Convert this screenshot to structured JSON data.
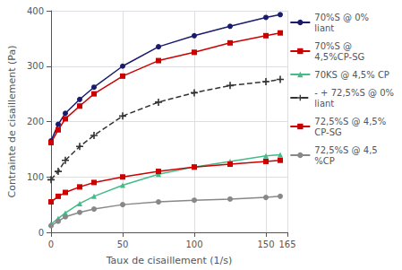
{
  "chart_data": {
    "type": "line",
    "xlabel": "Taux de cisaillement (1/s)",
    "ylabel": "Contrainte de cisaillement (Pa)",
    "xlim": [
      0,
      165
    ],
    "ylim": [
      0,
      400
    ],
    "xticks": [
      0,
      50,
      100,
      150
    ],
    "yticks": [
      0,
      100,
      200,
      300,
      400
    ],
    "grid": true,
    "legend": "right",
    "x": [
      0,
      5,
      10,
      20,
      30,
      50,
      75,
      100,
      125,
      150,
      160
    ],
    "series": [
      {
        "name": "70%S @ 0%\nliant",
        "color": "#1a1a6e",
        "marker": "circle",
        "line_style": "solid",
        "values": [
          165,
          195,
          215,
          240,
          262,
          300,
          335,
          355,
          372,
          388,
          393
        ]
      },
      {
        "name": "70%S @\n4,5%CP-SG",
        "color": "#CC0000",
        "marker": "square",
        "line_style": "solid",
        "values": [
          162,
          185,
          205,
          228,
          250,
          282,
          310,
          325,
          342,
          355,
          360
        ]
      },
      {
        "name": "70KS @ 4,5% CP",
        "color": "#44BB88",
        "marker": "triangle",
        "line_style": "solid",
        "values": [
          15,
          25,
          35,
          52,
          65,
          85,
          105,
          118,
          128,
          138,
          140
        ]
      },
      {
        "name": "- + 72,5%S @ 0%\nliant",
        "color": "#333333",
        "marker": "plus",
        "line_style": "dashed",
        "values": [
          95,
          110,
          130,
          155,
          175,
          210,
          235,
          252,
          265,
          272,
          276
        ]
      },
      {
        "name": "72,5%S @ 4,5%\nCP-SG",
        "color": "#CC0000",
        "marker": "square",
        "line_style": "solid",
        "values": [
          55,
          65,
          72,
          82,
          90,
          100,
          110,
          118,
          123,
          128,
          130
        ]
      },
      {
        "name": "72,5%S @ 4,5\n%CP",
        "color": "#888888",
        "marker": "circle",
        "line_style": "solid",
        "values": [
          12,
          20,
          28,
          36,
          42,
          50,
          55,
          58,
          60,
          63,
          65
        ]
      }
    ]
  }
}
